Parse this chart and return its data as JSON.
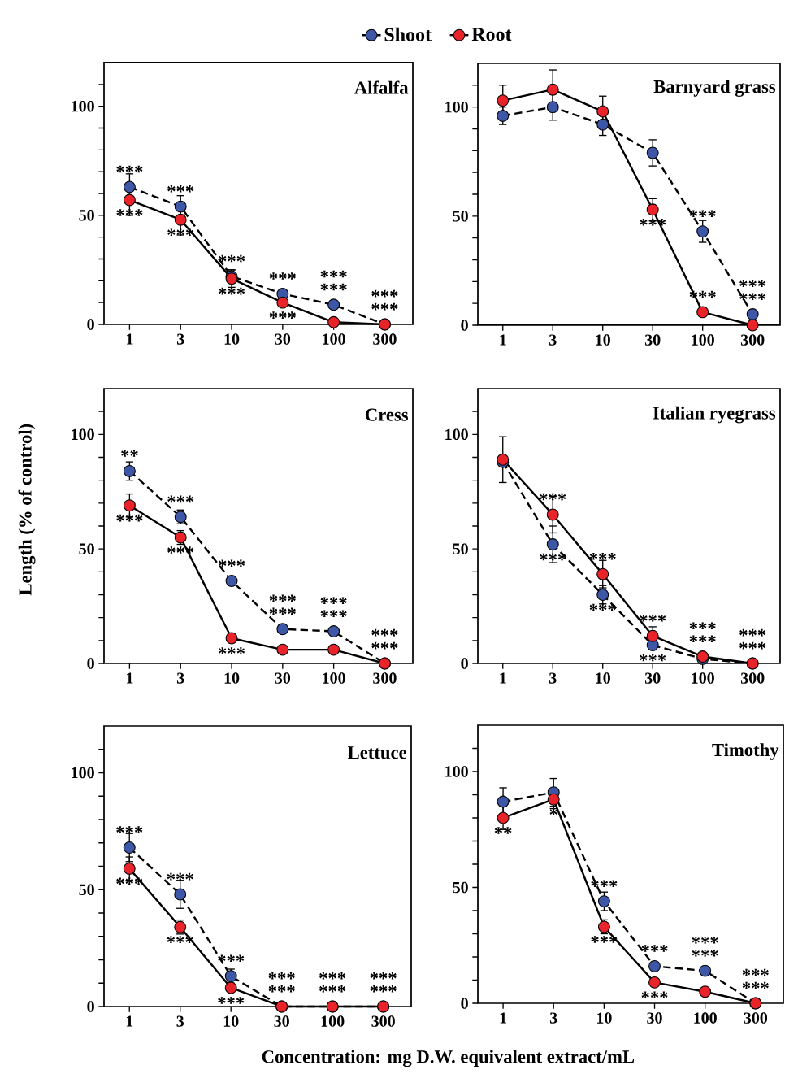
{
  "chart_data": [
    {
      "type": "line",
      "title": "Alfalfa",
      "categories": [
        "1",
        "3",
        "10",
        "30",
        "100",
        "300"
      ],
      "ylim": [
        0,
        120
      ],
      "yticks": [
        0,
        {
          "value": 10,
          "label": null
        },
        {
          "value": 20,
          "label": null
        },
        {
          "value": 30,
          "label": null
        },
        {
          "value": 40,
          "label": null
        },
        50,
        {
          "value": 60,
          "label": null
        },
        {
          "value": 70,
          "label": null
        },
        {
          "value": 80,
          "label": null
        },
        {
          "value": 90,
          "label": null
        },
        100,
        {
          "value": 110,
          "label": null
        }
      ],
      "marker": "circle",
      "legend": "top",
      "series": [
        {
          "name": "Shoot",
          "color": "#3d56a6",
          "line_style": "dashed",
          "values": [
            63,
            54,
            22,
            14,
            9,
            0
          ],
          "errors": [
            6,
            5,
            3,
            null,
            null,
            null
          ]
        },
        {
          "name": "Root",
          "color": "#e8232a",
          "line_style": "solid",
          "values": [
            57,
            48,
            21,
            10,
            1,
            0
          ],
          "errors": [
            7,
            7,
            4,
            null,
            null,
            null
          ]
        }
      ],
      "annotations": [
        {
          "text": "***",
          "x": "1",
          "y": 63
        },
        {
          "text": "***",
          "x": "1",
          "y": 57
        },
        {
          "text": "***",
          "x": "3",
          "y": 54
        },
        {
          "text": "***",
          "x": "3",
          "y": 48
        },
        {
          "text": "***",
          "x": "10",
          "y": 22
        },
        {
          "text": "***",
          "x": "10",
          "y": 21
        },
        {
          "text": "***",
          "x": "30",
          "y": 14
        },
        {
          "text": "***",
          "x": "30",
          "y": 10
        },
        {
          "text": "***",
          "x": "100",
          "y": 9
        },
        {
          "text": "***",
          "x": "100",
          "y": 1
        },
        {
          "text": "***",
          "x": "300",
          "y": 0
        },
        {
          "text": "***",
          "x": "300",
          "y": 0
        }
      ]
    },
    {
      "type": "line",
      "title": "Barnyard grass",
      "categories": [
        "1",
        "3",
        "10",
        "30",
        "100",
        "300"
      ],
      "ylim": [
        0,
        120
      ],
      "yticks": [
        0,
        {
          "value": 10,
          "label": null
        },
        {
          "value": 20,
          "label": null
        },
        {
          "value": 30,
          "label": null
        },
        {
          "value": 40,
          "label": null
        },
        50,
        {
          "value": 60,
          "label": null
        },
        {
          "value": 70,
          "label": null
        },
        {
          "value": 80,
          "label": null
        },
        {
          "value": 90,
          "label": null
        },
        100,
        {
          "value": 110,
          "label": null
        }
      ],
      "marker": "circle",
      "series": [
        {
          "color": "#3d56a6",
          "line_style": "dashed",
          "values": [
            96,
            100,
            92,
            79,
            43,
            5
          ],
          "errors": [
            4,
            6,
            5,
            6,
            5,
            null
          ]
        },
        {
          "color": "#e8232a",
          "line_style": "solid",
          "values": [
            103,
            108,
            98,
            53,
            6,
            0
          ],
          "errors": [
            7,
            9,
            7,
            5,
            null,
            null
          ]
        }
      ],
      "annotations": [
        {
          "text": "***",
          "x": "100",
          "y": 43
        },
        {
          "text": "***",
          "x": "30",
          "y": 53
        },
        {
          "text": "***",
          "x": "100",
          "y": 6
        },
        {
          "text": "***",
          "x": "300",
          "y": 5
        },
        {
          "text": "***",
          "x": "300",
          "y": 0
        }
      ]
    },
    {
      "type": "line",
      "title": "Cress",
      "ylabel": "Length (% of control)",
      "categories": [
        "1",
        "3",
        "10",
        "30",
        "100",
        "300"
      ],
      "ylim": [
        0,
        120
      ],
      "yticks": [
        0,
        {
          "value": 10,
          "label": null
        },
        {
          "value": 20,
          "label": null
        },
        {
          "value": 30,
          "label": null
        },
        {
          "value": 40,
          "label": null
        },
        50,
        {
          "value": 60,
          "label": null
        },
        {
          "value": 70,
          "label": null
        },
        {
          "value": 80,
          "label": null
        },
        {
          "value": 90,
          "label": null
        },
        100,
        {
          "value": 110,
          "label": null
        }
      ],
      "marker": "circle",
      "series": [
        {
          "color": "#3d56a6",
          "line_style": "dashed",
          "values": [
            84,
            64,
            36,
            15,
            14,
            0
          ],
          "errors": [
            4,
            3,
            null,
            null,
            null,
            null
          ]
        },
        {
          "color": "#e8232a",
          "line_style": "solid",
          "values": [
            69,
            55,
            11,
            6,
            6,
            0
          ],
          "errors": [
            5,
            3,
            null,
            null,
            null,
            null
          ]
        }
      ],
      "annotations": [
        {
          "text": "**",
          "x": "1",
          "y": 84
        },
        {
          "text": "***",
          "x": "1",
          "y": 69
        },
        {
          "text": "***",
          "x": "3",
          "y": 64
        },
        {
          "text": "***",
          "x": "3",
          "y": 55
        },
        {
          "text": "***",
          "x": "10",
          "y": 36
        },
        {
          "text": "***",
          "x": "10",
          "y": 11
        },
        {
          "text": "***",
          "x": "30",
          "y": 15
        },
        {
          "text": "***",
          "x": "30",
          "y": 6
        },
        {
          "text": "***",
          "x": "100",
          "y": 14
        },
        {
          "text": "***",
          "x": "100",
          "y": 6
        },
        {
          "text": "***",
          "x": "300",
          "y": 0
        },
        {
          "text": "***",
          "x": "300",
          "y": 0
        }
      ]
    },
    {
      "type": "line",
      "title": "Italian ryegrass",
      "categories": [
        "1",
        "3",
        "10",
        "30",
        "100",
        "300"
      ],
      "ylim": [
        0,
        120
      ],
      "yticks": [
        0,
        {
          "value": 10,
          "label": null
        },
        {
          "value": 20,
          "label": null
        },
        {
          "value": 30,
          "label": null
        },
        {
          "value": 40,
          "label": null
        },
        50,
        {
          "value": 60,
          "label": null
        },
        {
          "value": 70,
          "label": null
        },
        {
          "value": 80,
          "label": null
        },
        {
          "value": 90,
          "label": null
        },
        100,
        {
          "value": 110,
          "label": null
        }
      ],
      "marker": "circle",
      "series": [
        {
          "color": "#3d56a6",
          "line_style": "dashed",
          "values": [
            88,
            52,
            30,
            8,
            2,
            0
          ],
          "errors": [
            null,
            8,
            4,
            null,
            null,
            null
          ]
        },
        {
          "color": "#e8232a",
          "line_style": "solid",
          "values": [
            89,
            65,
            39,
            12,
            3,
            0
          ],
          "errors": [
            10,
            8,
            6,
            4,
            null,
            null
          ]
        }
      ],
      "annotations": [
        {
          "text": "***",
          "x": "3",
          "y": 65
        },
        {
          "text": "***",
          "x": "3",
          "y": 52
        },
        {
          "text": "***",
          "x": "10",
          "y": 39
        },
        {
          "text": "***",
          "x": "10",
          "y": 30
        },
        {
          "text": "***",
          "x": "30",
          "y": 12
        },
        {
          "text": "***",
          "x": "30",
          "y": 8
        },
        {
          "text": "***",
          "x": "100",
          "y": 3
        },
        {
          "text": "***",
          "x": "100",
          "y": 2
        },
        {
          "text": "***",
          "x": "300",
          "y": 0
        },
        {
          "text": "***",
          "x": "300",
          "y": 0
        }
      ]
    },
    {
      "type": "line",
      "title": "Lettuce",
      "xlabel": "Concentration:  mg D.W. equivalent extract/mL",
      "categories": [
        "1",
        "3",
        "10",
        "30",
        "100",
        "300"
      ],
      "ylim": [
        0,
        120
      ],
      "yticks": [
        0,
        {
          "value": 10,
          "label": null
        },
        {
          "value": 20,
          "label": null
        },
        {
          "value": 30,
          "label": null
        },
        {
          "value": 40,
          "label": null
        },
        50,
        {
          "value": 60,
          "label": null
        },
        {
          "value": 70,
          "label": null
        },
        {
          "value": 80,
          "label": null
        },
        {
          "value": 90,
          "label": null
        },
        100,
        {
          "value": 110,
          "label": null
        }
      ],
      "marker": "circle",
      "series": [
        {
          "color": "#3d56a6",
          "line_style": "dashed",
          "values": [
            68,
            48,
            13,
            0,
            0,
            0
          ],
          "errors": [
            6,
            6,
            3,
            null,
            null,
            null
          ]
        },
        {
          "color": "#e8232a",
          "line_style": "solid",
          "values": [
            59,
            34,
            8,
            0,
            0,
            0
          ],
          "errors": [
            5,
            3,
            null,
            null,
            null,
            null
          ]
        }
      ],
      "annotations": [
        {
          "text": "***",
          "x": "1",
          "y": 68
        },
        {
          "text": "***",
          "x": "1",
          "y": 59
        },
        {
          "text": "***",
          "x": "3",
          "y": 48
        },
        {
          "text": "***",
          "x": "3",
          "y": 34
        },
        {
          "text": "***",
          "x": "10",
          "y": 13
        },
        {
          "text": "***",
          "x": "10",
          "y": 8
        },
        {
          "text": "***",
          "x": "30",
          "y": 0
        },
        {
          "text": "***",
          "x": "30",
          "y": 0
        },
        {
          "text": "***",
          "x": "100",
          "y": 0
        },
        {
          "text": "***",
          "x": "100",
          "y": 0
        },
        {
          "text": "***",
          "x": "300",
          "y": 0
        },
        {
          "text": "***",
          "x": "300",
          "y": 0
        }
      ]
    },
    {
      "type": "line",
      "title": "Timothy",
      "categories": [
        "1",
        "3",
        "10",
        "30",
        "100",
        "300"
      ],
      "ylim": [
        0,
        120
      ],
      "yticks": [
        0,
        {
          "value": 10,
          "label": null
        },
        {
          "value": 20,
          "label": null
        },
        {
          "value": 30,
          "label": null
        },
        {
          "value": 40,
          "label": null
        },
        50,
        {
          "value": 60,
          "label": null
        },
        {
          "value": 70,
          "label": null
        },
        {
          "value": 80,
          "label": null
        },
        {
          "value": 90,
          "label": null
        },
        100,
        {
          "value": 110,
          "label": null
        }
      ],
      "marker": "circle",
      "series": [
        {
          "color": "#3d56a6",
          "line_style": "dashed",
          "values": [
            87,
            91,
            44,
            16,
            14,
            0
          ],
          "errors": [
            6,
            6,
            4,
            null,
            null,
            null
          ]
        },
        {
          "color": "#e8232a",
          "line_style": "solid",
          "values": [
            80,
            88,
            33,
            9,
            5,
            0
          ],
          "errors": [
            5,
            4,
            3,
            null,
            null,
            null
          ]
        }
      ],
      "annotations": [
        {
          "text": "**",
          "x": "1",
          "y": 80
        },
        {
          "text": "*",
          "x": "3",
          "y": 88
        },
        {
          "text": "***",
          "x": "10",
          "y": 44
        },
        {
          "text": "***",
          "x": "10",
          "y": 33
        },
        {
          "text": "***",
          "x": "30",
          "y": 16
        },
        {
          "text": "***",
          "x": "30",
          "y": 9
        },
        {
          "text": "***",
          "x": "100",
          "y": 14
        },
        {
          "text": "***",
          "x": "100",
          "y": 5
        },
        {
          "text": "***",
          "x": "300",
          "y": 0
        },
        {
          "text": "***",
          "x": "300",
          "y": 0
        }
      ]
    }
  ]
}
